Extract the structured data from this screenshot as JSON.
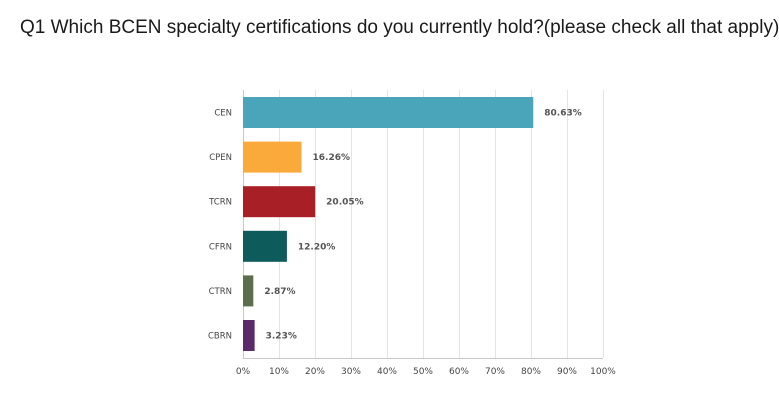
{
  "title": "Q1 Which BCEN specialty certifications do you currently hold?(please check all that apply)",
  "chart_data": {
    "type": "bar",
    "orientation": "horizontal",
    "categories": [
      "CEN",
      "CPEN",
      "TCRN",
      "CFRN",
      "CTRN",
      "CBRN"
    ],
    "values": [
      80.63,
      16.26,
      20.05,
      12.2,
      2.87,
      3.23
    ],
    "value_labels": [
      "80.63%",
      "16.26%",
      "20.05%",
      "12.20%",
      "2.87%",
      "3.23%"
    ],
    "colors": [
      "#4aa5bb",
      "#f9aa3a",
      "#a81f26",
      "#0d5c5b",
      "#5b6f4d",
      "#5a2a6b"
    ],
    "xlim": [
      0,
      100
    ],
    "x_ticks": [
      "0%",
      "10%",
      "20%",
      "30%",
      "40%",
      "50%",
      "60%",
      "70%",
      "80%",
      "90%",
      "100%"
    ],
    "grid": true,
    "legend": "none",
    "xlabel": "",
    "ylabel": ""
  }
}
